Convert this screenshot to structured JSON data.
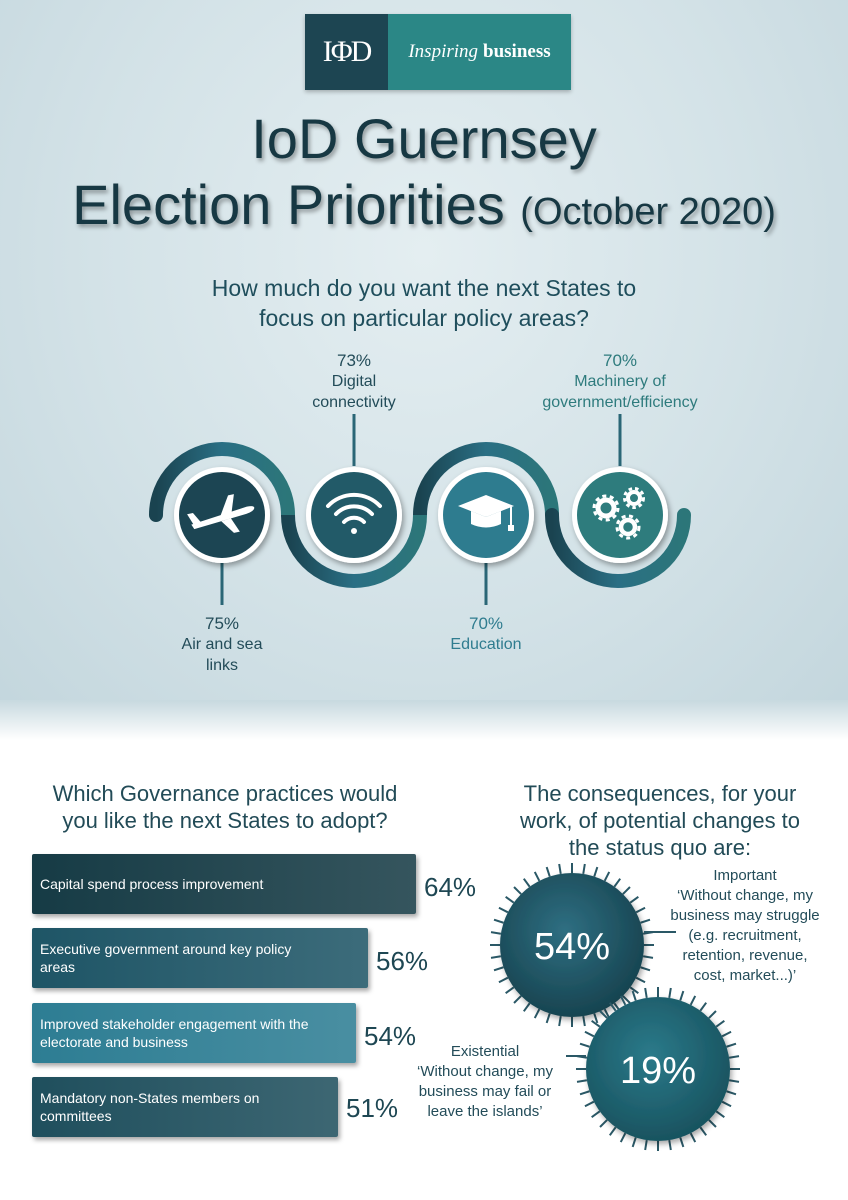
{
  "logo": {
    "mark": "IΦD",
    "tagline_italic": "Inspiring",
    "tagline_bold": "business"
  },
  "title": {
    "line1": "IoD Guernsey",
    "line2": "Election Priorities",
    "date": "(October 2020)"
  },
  "policy": {
    "question_line1": "How much do you want the next States to",
    "question_line2": "focus on particular policy areas?",
    "areas": [
      {
        "pct": "75%",
        "label_line1": "Air and sea",
        "label_line2": "links",
        "icon": "airplane-icon",
        "color": "#1d4552"
      },
      {
        "pct": "73%",
        "label_line1": "Digital",
        "label_line2": "connectivity",
        "icon": "wifi-icon",
        "color": "#245a68"
      },
      {
        "pct": "70%",
        "label_line1": "Education",
        "label_line2": "",
        "icon": "graduation-cap-icon",
        "color": "#2f7c8f"
      },
      {
        "pct": "70%",
        "label_line1": "Machinery of",
        "label_line2": "government/efficiency",
        "icon": "gears-icon",
        "color": "#2e7b7d"
      }
    ]
  },
  "governance": {
    "question_line1": "Which Governance practices would",
    "question_line2": "you like the next States to adopt?",
    "items": [
      {
        "label_line1": "Capital spend  process improvement",
        "label_line2": "",
        "pct": "64%",
        "value": 64,
        "color": "#163b45"
      },
      {
        "label_line1": "Executive government around key policy",
        "label_line2": "areas",
        "pct": "56%",
        "value": 56,
        "color": "#1e5566"
      },
      {
        "label_line1": "Improved stakeholder engagement with the",
        "label_line2": "electorate and business",
        "pct": "54%",
        "value": 54,
        "color": "#2d7d93"
      },
      {
        "label_line1": "Mandatory non-States members on",
        "label_line2": "committees",
        "pct": "51%",
        "value": 51,
        "color": "#1f4f5d"
      }
    ]
  },
  "consequences": {
    "question_line1": "The consequences, for your",
    "question_line2": "work, of potential changes to",
    "question_line3": "the status quo are:",
    "important": {
      "pct": "54%",
      "lines": [
        "Important",
        "‘Without change, my",
        "business may struggle",
        "(e.g. recruitment,",
        "retention, revenue,",
        "cost, market...)’"
      ]
    },
    "existential": {
      "pct": "19%",
      "lines": [
        "Existential",
        "‘Without change, my",
        "business may fail or",
        "leave the islands’"
      ]
    }
  }
}
